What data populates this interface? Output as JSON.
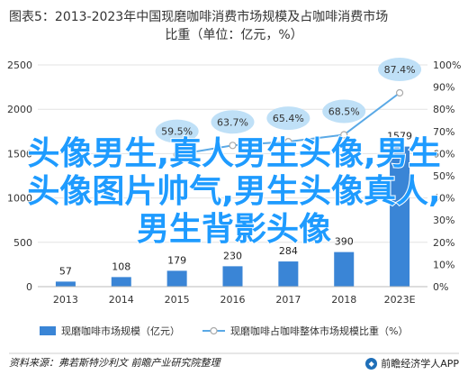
{
  "title": {
    "line1": "图表5：2013-2023年中国现磨咖啡消费市场规模及占咖啡消费市场",
    "line2": "比重（单位：亿元，%）"
  },
  "chart_data": {
    "type": "bar+line",
    "categories": [
      "2013",
      "2014",
      "2015",
      "2016",
      "2017",
      "2018",
      "2023E"
    ],
    "bar_series": {
      "name": "现磨咖啡市场规模（亿元）",
      "values": [
        57,
        108,
        179,
        230,
        284,
        390,
        1579
      ],
      "color": "#3a85d6",
      "axis": "left"
    },
    "line_series": {
      "name": "现磨咖啡占咖啡整体市场规模比重（%）",
      "values": [
        null,
        null,
        59.5,
        63.7,
        65.4,
        68.5,
        87.4
      ],
      "color": "#5aa9e6",
      "axis": "right"
    },
    "left_axis": {
      "min": 0,
      "max": 2500,
      "ticks": [
        0,
        500,
        1000,
        1500,
        2000,
        2500
      ]
    },
    "right_axis": {
      "min": 0,
      "max": 100,
      "ticks": [
        "0%",
        "10%",
        "20%",
        "30%",
        "40%",
        "50%",
        "60%",
        "70%",
        "80%",
        "90%",
        "100%"
      ]
    },
    "grid": true,
    "legend_position": "bottom"
  },
  "watermark_text": "头像男生,真人男生头像,男生头像图片帅气,男生头像真人,男生背影头像",
  "footer": {
    "source": "资料来源：弗若斯特沙利文 前瞻产业研究院整理",
    "brand": "前瞻经济学人APP"
  }
}
